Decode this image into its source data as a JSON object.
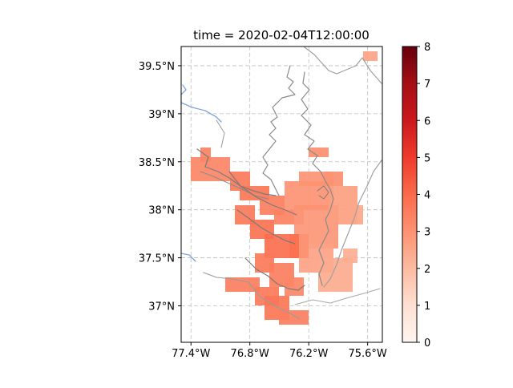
{
  "chart_data": {
    "type": "heatmap",
    "title": "time = 2020-02-04T12:00:00",
    "xlabel": "",
    "ylabel": "",
    "xlim": [
      -77.5,
      -75.45
    ],
    "ylim": [
      36.62,
      39.7
    ],
    "x_ticks": [
      -77.4,
      -76.8,
      -76.2,
      -75.6
    ],
    "x_tick_labels": [
      "77.4°W",
      "76.8°W",
      "76.2°W",
      "75.6°W"
    ],
    "y_ticks": [
      37.0,
      37.5,
      38.0,
      38.5,
      39.0,
      39.5
    ],
    "y_tick_labels": [
      "37°N",
      "37.5°N",
      "38°N",
      "38.5°N",
      "39°N",
      "39.5°N"
    ],
    "grid": true,
    "colormap": "Reds",
    "colorbar": {
      "vmin": 0,
      "vmax": 8,
      "ticks": [
        0,
        1,
        2,
        3,
        4,
        5,
        6,
        7,
        8
      ],
      "tick_labels": [
        "0",
        "1",
        "2",
        "3",
        "4",
        "5",
        "6",
        "7",
        "8"
      ],
      "color_stops": [
        "#fff5f0",
        "#fee0d2",
        "#fcbba1",
        "#fc9272",
        "#fb6a4a",
        "#ef3b2c",
        "#cb181d",
        "#a50f15",
        "#67000d"
      ]
    },
    "cell_size_deg": 0.05,
    "cells": [
      {
        "lon": [
          -75.64,
          -75.53
        ],
        "lat": [
          39.57,
          39.65
        ],
        "value": 2.6
      },
      {
        "lon": [
          -76.16,
          -76.02
        ],
        "lat": [
          38.56,
          38.62
        ],
        "value": 3.1
      },
      {
        "lon": [
          -77.3,
          -77.2
        ],
        "lat": [
          38.55,
          38.63
        ],
        "value": 3.4
      },
      {
        "lon": [
          -77.4,
          -77.02
        ],
        "lat": [
          38.33,
          38.55
        ],
        "value": 3.3
      },
      {
        "lon": [
          -76.97,
          -76.82
        ],
        "lat": [
          38.22,
          38.4
        ],
        "value": 3.6
      },
      {
        "lon": [
          -76.86,
          -76.63
        ],
        "lat": [
          38.12,
          38.25
        ],
        "value": 3.7
      },
      {
        "lon": [
          -76.66,
          -76.49
        ],
        "lat": [
          37.95,
          38.14
        ],
        "value": 3.5
      },
      {
        "lon": [
          -76.55,
          -76.25
        ],
        "lat": [
          37.85,
          38.0
        ],
        "value": 3.4
      },
      {
        "lon": [
          -76.35,
          -75.92
        ],
        "lat": [
          37.6,
          38.05
        ],
        "value": 2.9
      },
      {
        "lon": [
          -76.45,
          -75.96
        ],
        "lat": [
          38.05,
          38.27
        ],
        "value": 3.0
      },
      {
        "lon": [
          -76.05,
          -75.88
        ],
        "lat": [
          38.26,
          38.4
        ],
        "value": 3.1
      },
      {
        "lon": [
          -76.28,
          -75.95
        ],
        "lat": [
          38.25,
          38.4
        ],
        "value": 3.0
      },
      {
        "lon": [
          -75.98,
          -75.72
        ],
        "lat": [
          37.9,
          38.25
        ],
        "value": 2.7
      },
      {
        "lon": [
          -75.78,
          -75.66
        ],
        "lat": [
          37.85,
          38.02
        ],
        "value": 2.5
      },
      {
        "lon": [
          -76.28,
          -75.99
        ],
        "lat": [
          37.35,
          37.62
        ],
        "value": 2.6
      },
      {
        "lon": [
          -76.08,
          -75.8
        ],
        "lat": [
          37.18,
          37.5
        ],
        "value": 2.4
      },
      {
        "lon": [
          -75.82,
          -75.7
        ],
        "lat": [
          37.45,
          37.6
        ],
        "value": 2.3
      },
      {
        "lon": [
          -76.36,
          -76.24
        ],
        "lat": [
          37.5,
          37.72
        ],
        "value": 3.0
      },
      {
        "lon": [
          -76.93,
          -76.78
        ],
        "lat": [
          37.88,
          38.02
        ],
        "value": 3.6
      },
      {
        "lon": [
          -76.8,
          -76.56
        ],
        "lat": [
          37.7,
          37.9
        ],
        "value": 3.8
      },
      {
        "lon": [
          -76.63,
          -76.33
        ],
        "lat": [
          37.54,
          37.74
        ],
        "value": 3.9
      },
      {
        "lon": [
          -76.72,
          -76.57
        ],
        "lat": [
          37.38,
          37.52
        ],
        "value": 3.6
      },
      {
        "lon": [
          -76.58,
          -76.38
        ],
        "lat": [
          37.22,
          37.42
        ],
        "value": 3.5
      },
      {
        "lon": [
          -76.43,
          -76.25
        ],
        "lat": [
          37.12,
          37.26
        ],
        "value": 3.3
      },
      {
        "lon": [
          -77.02,
          -76.73
        ],
        "lat": [
          37.18,
          37.28
        ],
        "value": 3.5
      },
      {
        "lon": [
          -76.75,
          -76.55
        ],
        "lat": [
          37.05,
          37.2
        ],
        "value": 3.6
      },
      {
        "lon": [
          -76.62,
          -76.4
        ],
        "lat": [
          36.9,
          37.08
        ],
        "value": 3.7
      },
      {
        "lon": [
          -76.48,
          -76.22
        ],
        "lat": [
          36.82,
          36.95
        ],
        "value": 3.5
      }
    ]
  }
}
